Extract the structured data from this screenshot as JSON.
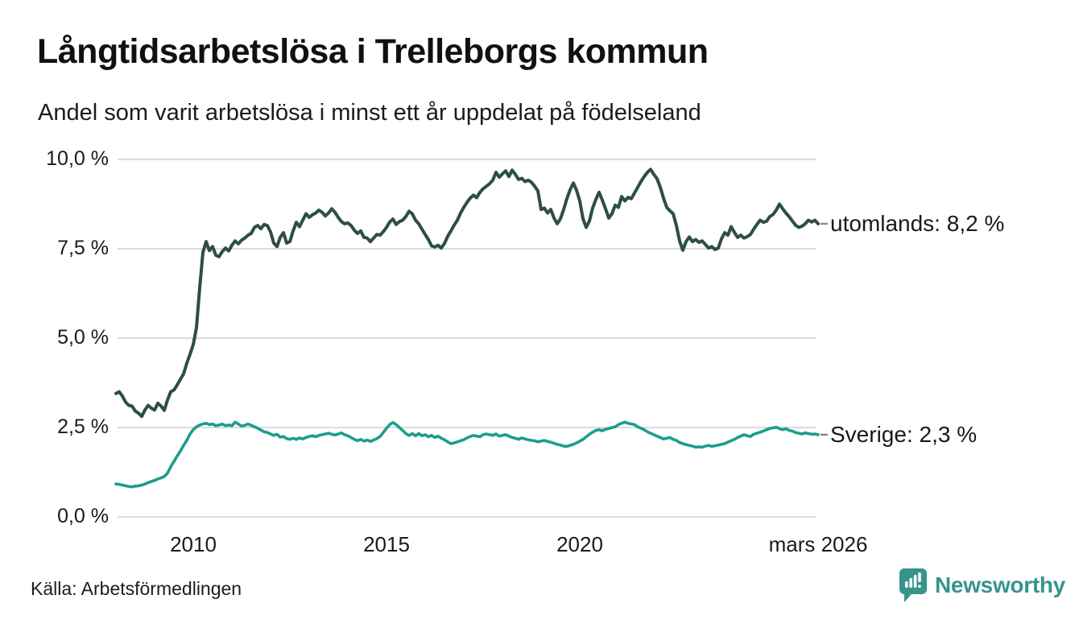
{
  "page": {
    "title": "Långtidsarbetslösa i Trelleborgs kommun",
    "subtitle": "Andel som varit arbetslösa i minst ett år uppdelat på födelseland",
    "source": "Källa: Arbetsförmedlingen",
    "brand": {
      "name": "Newsworthy",
      "icon": "newsworthy-speech-bubble-barchart-icon",
      "color": "#37948b"
    }
  },
  "colors": {
    "background": "#ffffff",
    "grid": "#dcdcdc",
    "text": "#1a1a1a",
    "label_connector": "#8a8a8a"
  },
  "chart_data": {
    "type": "line",
    "title": "Långtidsarbetslösa i Trelleborgs kommun",
    "subtitle": "Andel som varit arbetslösa i minst ett år uppdelat på födelseland",
    "unit": "%",
    "grid": true,
    "legend_position": "line-end-labels",
    "x_axis": {
      "start_year": 2008,
      "end_label_year": 2026.167,
      "ticks": [
        {
          "label": "2010",
          "year": 2010.0
        },
        {
          "label": "2015",
          "year": 2015.0
        },
        {
          "label": "2020",
          "year": 2020.0
        },
        {
          "label": "mars 2026",
          "year": 2026.167
        }
      ]
    },
    "y_axis": {
      "min": 0,
      "max": 10,
      "ticks": [
        {
          "value": 0,
          "label": "0,0 %"
        },
        {
          "value": 2.5,
          "label": "2,5 %"
        },
        {
          "value": 5,
          "label": "5,0 %"
        },
        {
          "value": 7.5,
          "label": "7,5 %"
        },
        {
          "value": 10,
          "label": "10,0 %"
        }
      ]
    },
    "series": [
      {
        "name": "utomlands",
        "end_label": "utomlands: 8,2 %",
        "color": "#2c4e45",
        "stroke_width": 4,
        "start_year": 2008,
        "interval": "monthly",
        "values": [
          3.45,
          3.5,
          3.38,
          3.21,
          3.12,
          3.1,
          2.96,
          2.9,
          2.81,
          2.99,
          3.12,
          3.04,
          2.99,
          3.18,
          3.1,
          2.98,
          3.27,
          3.5,
          3.55,
          3.69,
          3.85,
          4.0,
          4.3,
          4.55,
          4.82,
          5.3,
          6.4,
          7.4,
          7.7,
          7.45,
          7.56,
          7.32,
          7.28,
          7.42,
          7.52,
          7.44,
          7.6,
          7.72,
          7.64,
          7.74,
          7.8,
          7.88,
          7.93,
          8.1,
          8.15,
          8.06,
          8.18,
          8.15,
          7.97,
          7.66,
          7.56,
          7.82,
          7.95,
          7.66,
          7.7,
          8.0,
          8.24,
          8.12,
          8.3,
          8.48,
          8.38,
          8.45,
          8.5,
          8.58,
          8.52,
          8.42,
          8.5,
          8.62,
          8.52,
          8.38,
          8.26,
          8.2,
          8.22,
          8.15,
          8.02,
          7.93,
          8.0,
          7.82,
          7.8,
          7.7,
          7.8,
          7.9,
          7.88,
          7.98,
          8.1,
          8.25,
          8.33,
          8.18,
          8.26,
          8.3,
          8.4,
          8.55,
          8.48,
          8.3,
          8.2,
          8.05,
          7.9,
          7.76,
          7.58,
          7.55,
          7.6,
          7.52,
          7.65,
          7.85,
          8.0,
          8.16,
          8.3,
          8.5,
          8.66,
          8.8,
          8.92,
          9.0,
          8.93,
          9.08,
          9.18,
          9.25,
          9.32,
          9.42,
          9.64,
          9.5,
          9.6,
          9.68,
          9.52,
          9.7,
          9.58,
          9.44,
          9.47,
          9.38,
          9.42,
          9.36,
          9.25,
          9.12,
          8.6,
          8.64,
          8.5,
          8.6,
          8.36,
          8.2,
          8.34,
          8.6,
          8.9,
          9.15,
          9.34,
          9.14,
          8.84,
          8.34,
          8.1,
          8.28,
          8.64,
          8.88,
          9.08,
          8.86,
          8.62,
          8.36,
          8.48,
          8.72,
          8.66,
          8.96,
          8.84,
          8.94,
          8.9,
          9.06,
          9.22,
          9.38,
          9.52,
          9.64,
          9.72,
          9.58,
          9.46,
          9.22,
          8.92,
          8.66,
          8.56,
          8.48,
          8.15,
          7.72,
          7.46,
          7.7,
          7.83,
          7.7,
          7.76,
          7.68,
          7.72,
          7.62,
          7.52,
          7.56,
          7.48,
          7.52,
          7.78,
          7.95,
          7.88,
          8.12,
          7.96,
          7.82,
          7.88,
          7.8,
          7.84,
          7.9,
          8.05,
          8.18,
          8.3,
          8.24,
          8.27,
          8.4,
          8.46,
          8.58,
          8.75,
          8.62,
          8.5,
          8.4,
          8.28,
          8.16,
          8.1,
          8.13,
          8.2,
          8.3,
          8.25,
          8.3,
          8.2
        ]
      },
      {
        "name": "Sverige",
        "end_label": "Sverige: 2,3 %",
        "color": "#1d9d8d",
        "stroke_width": 3.6,
        "start_year": 2008,
        "interval": "monthly",
        "values": [
          0.92,
          0.91,
          0.89,
          0.87,
          0.85,
          0.84,
          0.86,
          0.87,
          0.89,
          0.92,
          0.96,
          0.99,
          1.02,
          1.06,
          1.09,
          1.13,
          1.22,
          1.4,
          1.55,
          1.7,
          1.84,
          2.0,
          2.14,
          2.32,
          2.44,
          2.52,
          2.57,
          2.6,
          2.62,
          2.58,
          2.6,
          2.55,
          2.57,
          2.6,
          2.55,
          2.57,
          2.55,
          2.65,
          2.6,
          2.54,
          2.56,
          2.6,
          2.56,
          2.52,
          2.48,
          2.43,
          2.38,
          2.36,
          2.32,
          2.28,
          2.31,
          2.23,
          2.25,
          2.19,
          2.17,
          2.2,
          2.17,
          2.21,
          2.18,
          2.22,
          2.25,
          2.27,
          2.24,
          2.28,
          2.3,
          2.32,
          2.34,
          2.31,
          2.29,
          2.32,
          2.35,
          2.3,
          2.27,
          2.22,
          2.17,
          2.13,
          2.17,
          2.12,
          2.15,
          2.11,
          2.15,
          2.19,
          2.25,
          2.36,
          2.48,
          2.58,
          2.64,
          2.58,
          2.5,
          2.42,
          2.33,
          2.28,
          2.33,
          2.27,
          2.33,
          2.27,
          2.3,
          2.24,
          2.28,
          2.22,
          2.26,
          2.2,
          2.16,
          2.1,
          2.05,
          2.07,
          2.1,
          2.13,
          2.16,
          2.21,
          2.25,
          2.28,
          2.26,
          2.24,
          2.3,
          2.32,
          2.3,
          2.28,
          2.32,
          2.26,
          2.28,
          2.3,
          2.26,
          2.22,
          2.2,
          2.17,
          2.21,
          2.18,
          2.16,
          2.14,
          2.13,
          2.1,
          2.12,
          2.14,
          2.11,
          2.09,
          2.06,
          2.03,
          2.01,
          1.98,
          1.97,
          2.0,
          2.03,
          2.07,
          2.12,
          2.17,
          2.24,
          2.31,
          2.37,
          2.42,
          2.44,
          2.41,
          2.45,
          2.47,
          2.5,
          2.52,
          2.58,
          2.62,
          2.65,
          2.62,
          2.6,
          2.58,
          2.52,
          2.48,
          2.44,
          2.38,
          2.34,
          2.3,
          2.26,
          2.22,
          2.18,
          2.2,
          2.22,
          2.17,
          2.14,
          2.08,
          2.05,
          2.02,
          2.0,
          1.98,
          1.95,
          1.96,
          1.95,
          1.98,
          2.0,
          1.97,
          1.99,
          2.01,
          2.03,
          2.05,
          2.09,
          2.13,
          2.17,
          2.22,
          2.26,
          2.3,
          2.27,
          2.25,
          2.31,
          2.34,
          2.37,
          2.4,
          2.44,
          2.47,
          2.49,
          2.51,
          2.47,
          2.44,
          2.47,
          2.42,
          2.4,
          2.36,
          2.34,
          2.32,
          2.35,
          2.33,
          2.31,
          2.32,
          2.3
        ]
      }
    ]
  }
}
